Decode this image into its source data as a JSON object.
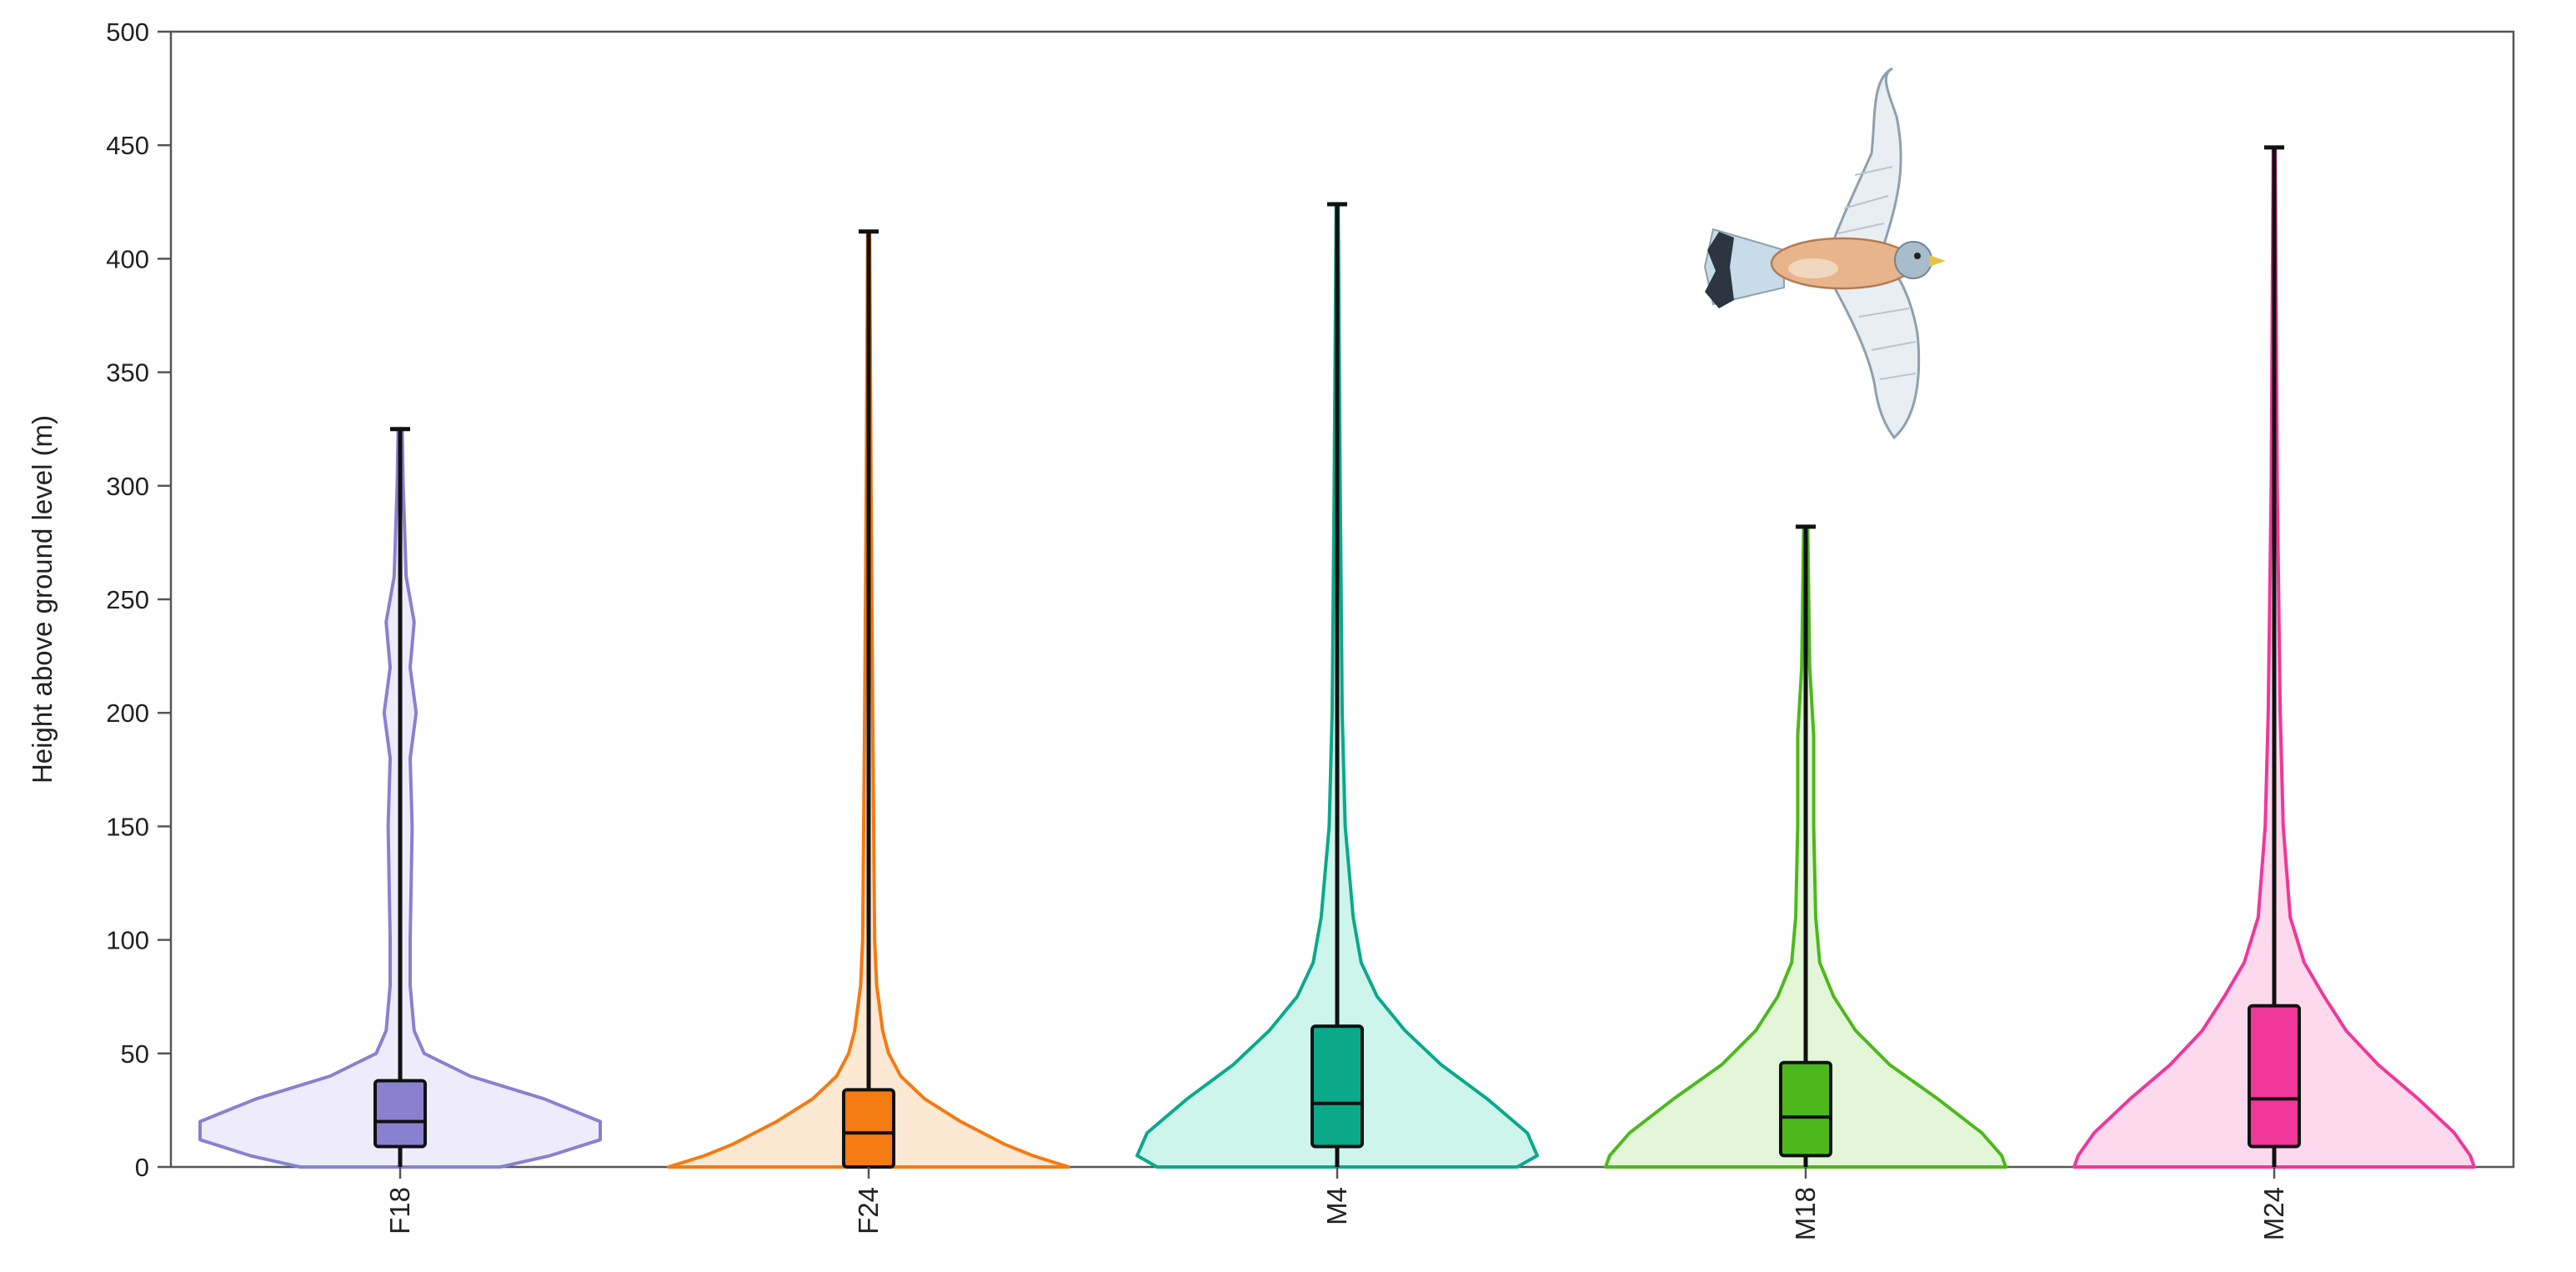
{
  "chart_data": {
    "type": "violin",
    "title": "",
    "xlabel": "",
    "ylabel": "Height above ground level (m)",
    "ylim": [
      0,
      500
    ],
    "yticks": [
      0,
      50,
      100,
      150,
      200,
      250,
      300,
      350,
      400,
      450,
      500
    ],
    "grid": false,
    "legend": "none",
    "categories": [
      "F18",
      "F24",
      "M4",
      "M18",
      "M24"
    ],
    "series": [
      {
        "category": "F18",
        "color": "#8a80cf",
        "fill": "#eeecfa",
        "min": 0,
        "q1": 9,
        "median": 20,
        "q3": 38,
        "max": 325,
        "density": [
          [
            0,
            0.5
          ],
          [
            5,
            0.75
          ],
          [
            12,
            1.0
          ],
          [
            20,
            1.0
          ],
          [
            30,
            0.72
          ],
          [
            40,
            0.35
          ],
          [
            50,
            0.12
          ],
          [
            60,
            0.07
          ],
          [
            80,
            0.05
          ],
          [
            100,
            0.05
          ],
          [
            150,
            0.06
          ],
          [
            180,
            0.05
          ],
          [
            200,
            0.08
          ],
          [
            220,
            0.05
          ],
          [
            240,
            0.07
          ],
          [
            260,
            0.03
          ],
          [
            300,
            0.015
          ],
          [
            325,
            0.01
          ]
        ]
      },
      {
        "category": "F24",
        "color": "#f47a12",
        "fill": "#fde8d3",
        "min": 0,
        "q1": 0,
        "median": 15,
        "q3": 34,
        "max": 412,
        "density": [
          [
            0,
            1.0
          ],
          [
            5,
            0.82
          ],
          [
            10,
            0.68
          ],
          [
            20,
            0.46
          ],
          [
            30,
            0.28
          ],
          [
            40,
            0.16
          ],
          [
            50,
            0.1
          ],
          [
            60,
            0.07
          ],
          [
            80,
            0.04
          ],
          [
            100,
            0.03
          ],
          [
            150,
            0.025
          ],
          [
            200,
            0.02
          ],
          [
            300,
            0.012
          ],
          [
            412,
            0.005
          ]
        ]
      },
      {
        "category": "M4",
        "color": "#0aa98a",
        "fill": "#cdf5ec",
        "min": 0,
        "q1": 9,
        "median": 28,
        "q3": 62,
        "max": 424,
        "density": [
          [
            0,
            0.9
          ],
          [
            5,
            1.0
          ],
          [
            15,
            0.95
          ],
          [
            30,
            0.75
          ],
          [
            45,
            0.52
          ],
          [
            60,
            0.34
          ],
          [
            75,
            0.2
          ],
          [
            90,
            0.12
          ],
          [
            110,
            0.08
          ],
          [
            150,
            0.04
          ],
          [
            200,
            0.025
          ],
          [
            300,
            0.015
          ],
          [
            424,
            0.005
          ]
        ]
      },
      {
        "category": "M18",
        "color": "#4db81c",
        "fill": "#e3f7d8",
        "min": 0,
        "q1": 5,
        "median": 22,
        "q3": 46,
        "max": 282,
        "density": [
          [
            0,
            1.0
          ],
          [
            5,
            0.98
          ],
          [
            15,
            0.88
          ],
          [
            30,
            0.66
          ],
          [
            45,
            0.42
          ],
          [
            60,
            0.25
          ],
          [
            75,
            0.14
          ],
          [
            90,
            0.07
          ],
          [
            110,
            0.05
          ],
          [
            150,
            0.04
          ],
          [
            190,
            0.04
          ],
          [
            220,
            0.02
          ],
          [
            282,
            0.01
          ]
        ]
      },
      {
        "category": "M24",
        "color": "#f0379a",
        "fill": "#fcd9ec",
        "min": 0,
        "q1": 9,
        "median": 30,
        "q3": 71,
        "max": 449,
        "density": [
          [
            0,
            1.0
          ],
          [
            5,
            0.98
          ],
          [
            15,
            0.9
          ],
          [
            30,
            0.72
          ],
          [
            45,
            0.52
          ],
          [
            60,
            0.36
          ],
          [
            75,
            0.25
          ],
          [
            90,
            0.15
          ],
          [
            110,
            0.08
          ],
          [
            150,
            0.045
          ],
          [
            200,
            0.03
          ],
          [
            300,
            0.015
          ],
          [
            449,
            0.005
          ]
        ]
      }
    ]
  },
  "illustration": {
    "icon": "kestrel-bird-icon"
  }
}
